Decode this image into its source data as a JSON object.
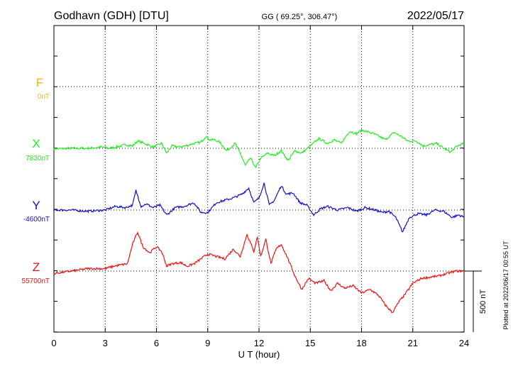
{
  "header": {
    "station": "Godhavn (GDH)  [DTU]",
    "coords": "GG ( 69.25°, 306.47°)",
    "date": "2022/05/17"
  },
  "plotted_note": "Plotted at 2022/06/17 00:55 UT",
  "scale_label": "500 nT",
  "colors": {
    "F": "#f5b800",
    "X": "#22ee22",
    "Y": "#1111cc",
    "Z": "#ee1111"
  },
  "chart_data": {
    "type": "line",
    "title": "Godhavn (GDH)  [DTU]",
    "xlabel": "U T (hour)",
    "ylabel": "",
    "xlim": [
      0,
      24
    ],
    "x_ticks": [
      0,
      3,
      6,
      9,
      12,
      15,
      18,
      21,
      24
    ],
    "x_tick_labels": [
      "0",
      "3",
      "6",
      "9",
      "12",
      "15",
      "18",
      "21",
      "24"
    ],
    "grid": true,
    "scale_bar_nT": 500,
    "series": [
      {
        "name": "F",
        "baseline_label": "0nT",
        "color": "#f5b800",
        "x": [],
        "y": []
      },
      {
        "name": "X",
        "baseline_label": "7830nT",
        "color": "#22ee22",
        "x": [
          0,
          1,
          2,
          2.8,
          3.2,
          3.8,
          4.2,
          4.6,
          4.9,
          5.3,
          5.8,
          6.3,
          6.6,
          6.9,
          7.3,
          7.7,
          8.2,
          8.6,
          8.9,
          9.1,
          9.4,
          9.7,
          10.1,
          10.6,
          10.9,
          11.2,
          11.5,
          11.8,
          12.1,
          12.5,
          12.9,
          13.3,
          13.7,
          14.1,
          14.5,
          15,
          15.5,
          16,
          16.4,
          16.8,
          17.3,
          17.7,
          18,
          18.5,
          19,
          19.4,
          19.9,
          20.3,
          20.7,
          21.2,
          21.6,
          22,
          22.4,
          22.8,
          23.2,
          23.6,
          24
        ],
        "y": [
          -5,
          0,
          0,
          10,
          0,
          15,
          30,
          20,
          60,
          40,
          10,
          40,
          -40,
          20,
          10,
          20,
          40,
          50,
          100,
          70,
          70,
          50,
          -20,
          40,
          -40,
          -140,
          -80,
          -160,
          -80,
          -40,
          -60,
          -20,
          -100,
          -20,
          -40,
          20,
          80,
          40,
          70,
          40,
          140,
          120,
          150,
          130,
          100,
          70,
          130,
          100,
          60,
          60,
          20,
          30,
          40,
          0,
          -30,
          20,
          40
        ]
      },
      {
        "name": "Y",
        "baseline_label": "-4600nT",
        "color": "#1111cc",
        "x": [
          0,
          1,
          2,
          3,
          3.6,
          4.2,
          4.6,
          4.8,
          5.1,
          5.4,
          5.8,
          6.2,
          6.6,
          7.1,
          7.6,
          8.2,
          8.6,
          9,
          9.5,
          10,
          10.5,
          11,
          11.4,
          11.7,
          12,
          12.3,
          12.6,
          12.9,
          13.3,
          13.6,
          14,
          14.4,
          14.8,
          15.2,
          15.6,
          16,
          16.6,
          17.2,
          17.7,
          18.2,
          18.8,
          19.2,
          19.6,
          20,
          20.4,
          20.8,
          21.3,
          21.8,
          22.3,
          22.8,
          23.3,
          23.7,
          24
        ],
        "y": [
          0,
          0,
          -10,
          0,
          30,
          20,
          40,
          160,
          30,
          50,
          20,
          40,
          -40,
          20,
          30,
          60,
          -20,
          -20,
          60,
          80,
          100,
          130,
          180,
          60,
          100,
          220,
          40,
          80,
          200,
          130,
          140,
          60,
          40,
          -40,
          10,
          30,
          0,
          20,
          -10,
          20,
          0,
          -20,
          -10,
          -60,
          -180,
          -60,
          -30,
          -40,
          0,
          -10,
          -60,
          -40,
          -60
        ]
      },
      {
        "name": "Z",
        "baseline_label": "55700nT",
        "color": "#ee1111",
        "x": [
          0,
          1,
          2,
          3,
          3.5,
          4.3,
          4.6,
          4.9,
          5.2,
          5.6,
          6,
          6.3,
          6.6,
          6.9,
          7.4,
          7.8,
          8.2,
          8.6,
          9,
          9.5,
          10,
          10.5,
          10.9,
          11.3,
          11.7,
          11.9,
          12.1,
          12.4,
          12.7,
          13,
          13.3,
          13.7,
          14.1,
          14.5,
          14.9,
          15.3,
          15.8,
          16.2,
          16.6,
          17,
          17.5,
          18,
          18.5,
          19,
          19.4,
          19.8,
          20.2,
          20.6,
          21,
          21.5,
          22,
          22.5,
          23,
          23.5,
          24
        ],
        "y": [
          -20,
          0,
          20,
          20,
          40,
          60,
          220,
          320,
          200,
          150,
          200,
          160,
          40,
          60,
          70,
          40,
          60,
          100,
          140,
          120,
          100,
          180,
          120,
          300,
          160,
          280,
          120,
          260,
          60,
          180,
          220,
          100,
          -40,
          -150,
          -60,
          -100,
          -80,
          -160,
          -100,
          -140,
          -120,
          -180,
          -150,
          -200,
          -280,
          -340,
          -250,
          -180,
          -100,
          -60,
          -50,
          -40,
          -20,
          0,
          0
        ]
      }
    ]
  }
}
